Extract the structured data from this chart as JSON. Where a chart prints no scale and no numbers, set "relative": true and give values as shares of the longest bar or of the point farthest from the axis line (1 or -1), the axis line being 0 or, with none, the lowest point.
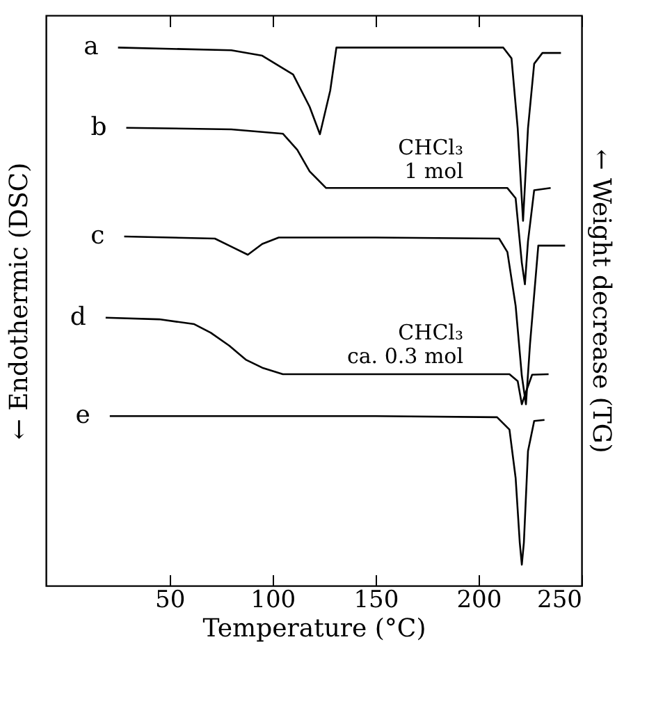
{
  "chart_data": {
    "type": "line",
    "relative": true,
    "xlabel": "Temperature (°C)",
    "ylabel": "← Endothermic (DSC)",
    "y2label": "← Weight decrease (TG)",
    "xlim": [
      -10,
      250
    ],
    "xticks": [
      50,
      100,
      150,
      200,
      250
    ],
    "grid": false,
    "legend": false,
    "marker": "none",
    "line_style": "solid",
    "series": [
      {
        "name": "a",
        "color": "#000000",
        "x": [
          25,
          80,
          95,
          110,
          118,
          123,
          128,
          131,
          150,
          212,
          216,
          219,
          221.6,
          224,
          227,
          231,
          240
        ],
        "values": [
          1.0,
          0.995,
          0.985,
          0.95,
          0.89,
          0.839,
          0.92,
          1.0,
          1.0,
          1.0,
          0.98,
          0.85,
          0.678,
          0.85,
          0.97,
          0.99,
          0.99
        ]
      },
      {
        "name": "b",
        "color": "#000000",
        "x": [
          29,
          80,
          105,
          112,
          118,
          126,
          150,
          214,
          218,
          221,
          222.5,
          224,
          227,
          235
        ],
        "values": [
          0.851,
          0.848,
          0.84,
          0.81,
          0.77,
          0.739,
          0.739,
          0.739,
          0.72,
          0.6,
          0.56,
          0.64,
          0.735,
          0.739
        ]
      },
      {
        "name": "c",
        "color": "#000000",
        "x": [
          28,
          72,
          80,
          88,
          95,
          103,
          150,
          210,
          214,
          218,
          221,
          223,
          225,
          229,
          242
        ],
        "values": [
          0.649,
          0.645,
          0.63,
          0.615,
          0.635,
          0.647,
          0.647,
          0.645,
          0.62,
          0.52,
          0.39,
          0.337,
          0.45,
          0.632,
          0.632
        ]
      },
      {
        "name": "d",
        "color": "#000000",
        "x": [
          19,
          45,
          62,
          70,
          79,
          87,
          95,
          105,
          150,
          215,
          219,
          221,
          223,
          226,
          234
        ],
        "values": [
          0.498,
          0.495,
          0.486,
          0.47,
          0.446,
          0.42,
          0.405,
          0.393,
          0.393,
          0.393,
          0.38,
          0.337,
          0.36,
          0.392,
          0.393
        ]
      },
      {
        "name": "e",
        "color": "#000000",
        "x": [
          21,
          150,
          209,
          215,
          218,
          220,
          221,
          222,
          224,
          227,
          232
        ],
        "values": [
          0.315,
          0.315,
          0.313,
          0.29,
          0.2,
          0.08,
          0.039,
          0.08,
          0.25,
          0.306,
          0.308
        ]
      }
    ],
    "annotations": [
      "CHCl₃\n1 mol",
      "CHCl₃\nca. 0.3 mol"
    ]
  }
}
